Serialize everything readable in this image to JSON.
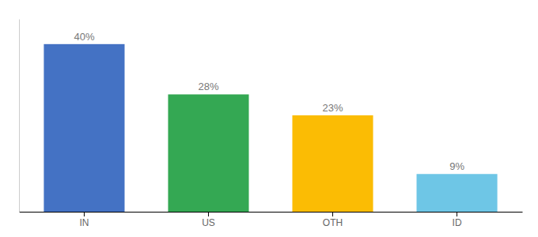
{
  "chart_data": {
    "type": "bar",
    "categories": [
      "IN",
      "US",
      "OTH",
      "ID"
    ],
    "values": [
      40,
      28,
      23,
      9
    ],
    "value_labels": [
      "40%",
      "28%",
      "23%",
      "9%"
    ],
    "data_labels": true,
    "colors": [
      "#4472C4",
      "#34A853",
      "#FBBC04",
      "#6EC6E6"
    ],
    "ylim": [
      0,
      46
    ],
    "grid": false,
    "tick_labels": "x"
  }
}
